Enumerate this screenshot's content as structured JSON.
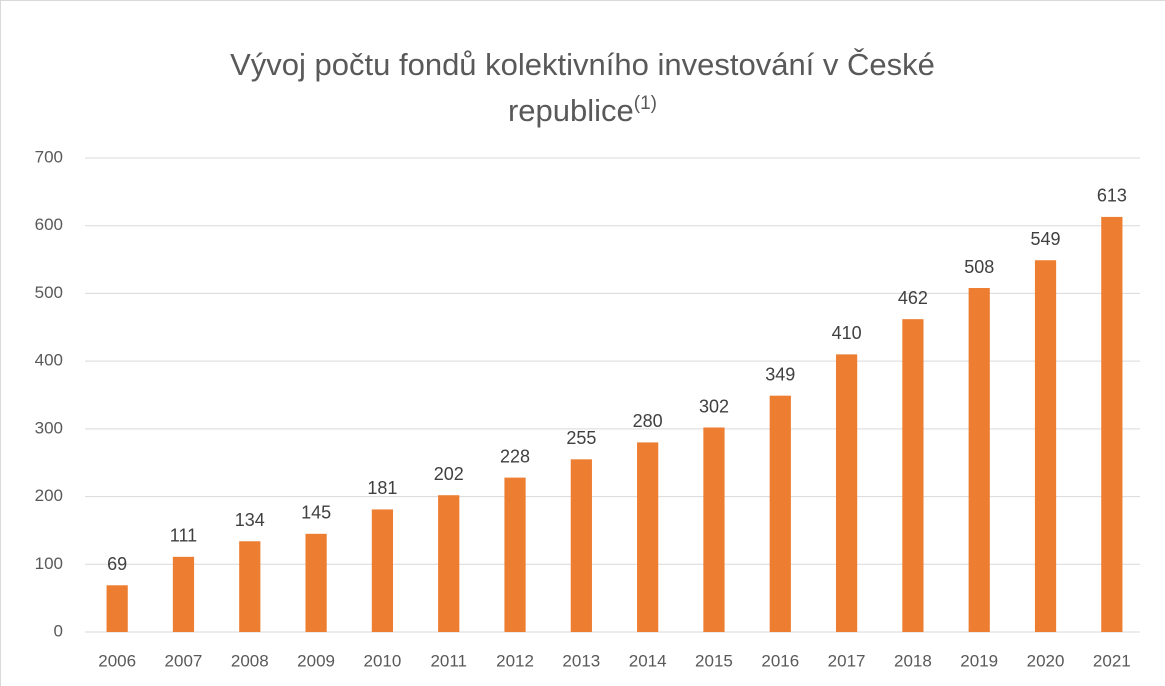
{
  "chart_data": {
    "type": "bar",
    "title": "Vývoj počtu fondů kolektivního investování v České republice",
    "title_superscript": "(1)",
    "categories": [
      "2006",
      "2007",
      "2008",
      "2009",
      "2010",
      "2011",
      "2012",
      "2013",
      "2014",
      "2015",
      "2016",
      "2017",
      "2018",
      "2019",
      "2020",
      "2021"
    ],
    "values": [
      69,
      111,
      134,
      145,
      181,
      202,
      228,
      255,
      280,
      302,
      349,
      410,
      462,
      508,
      549,
      613
    ],
    "color": "#ed7d31",
    "ylim": [
      0,
      700
    ],
    "yticks": [
      0,
      100,
      200,
      300,
      400,
      500,
      600,
      700
    ],
    "grid": true
  }
}
